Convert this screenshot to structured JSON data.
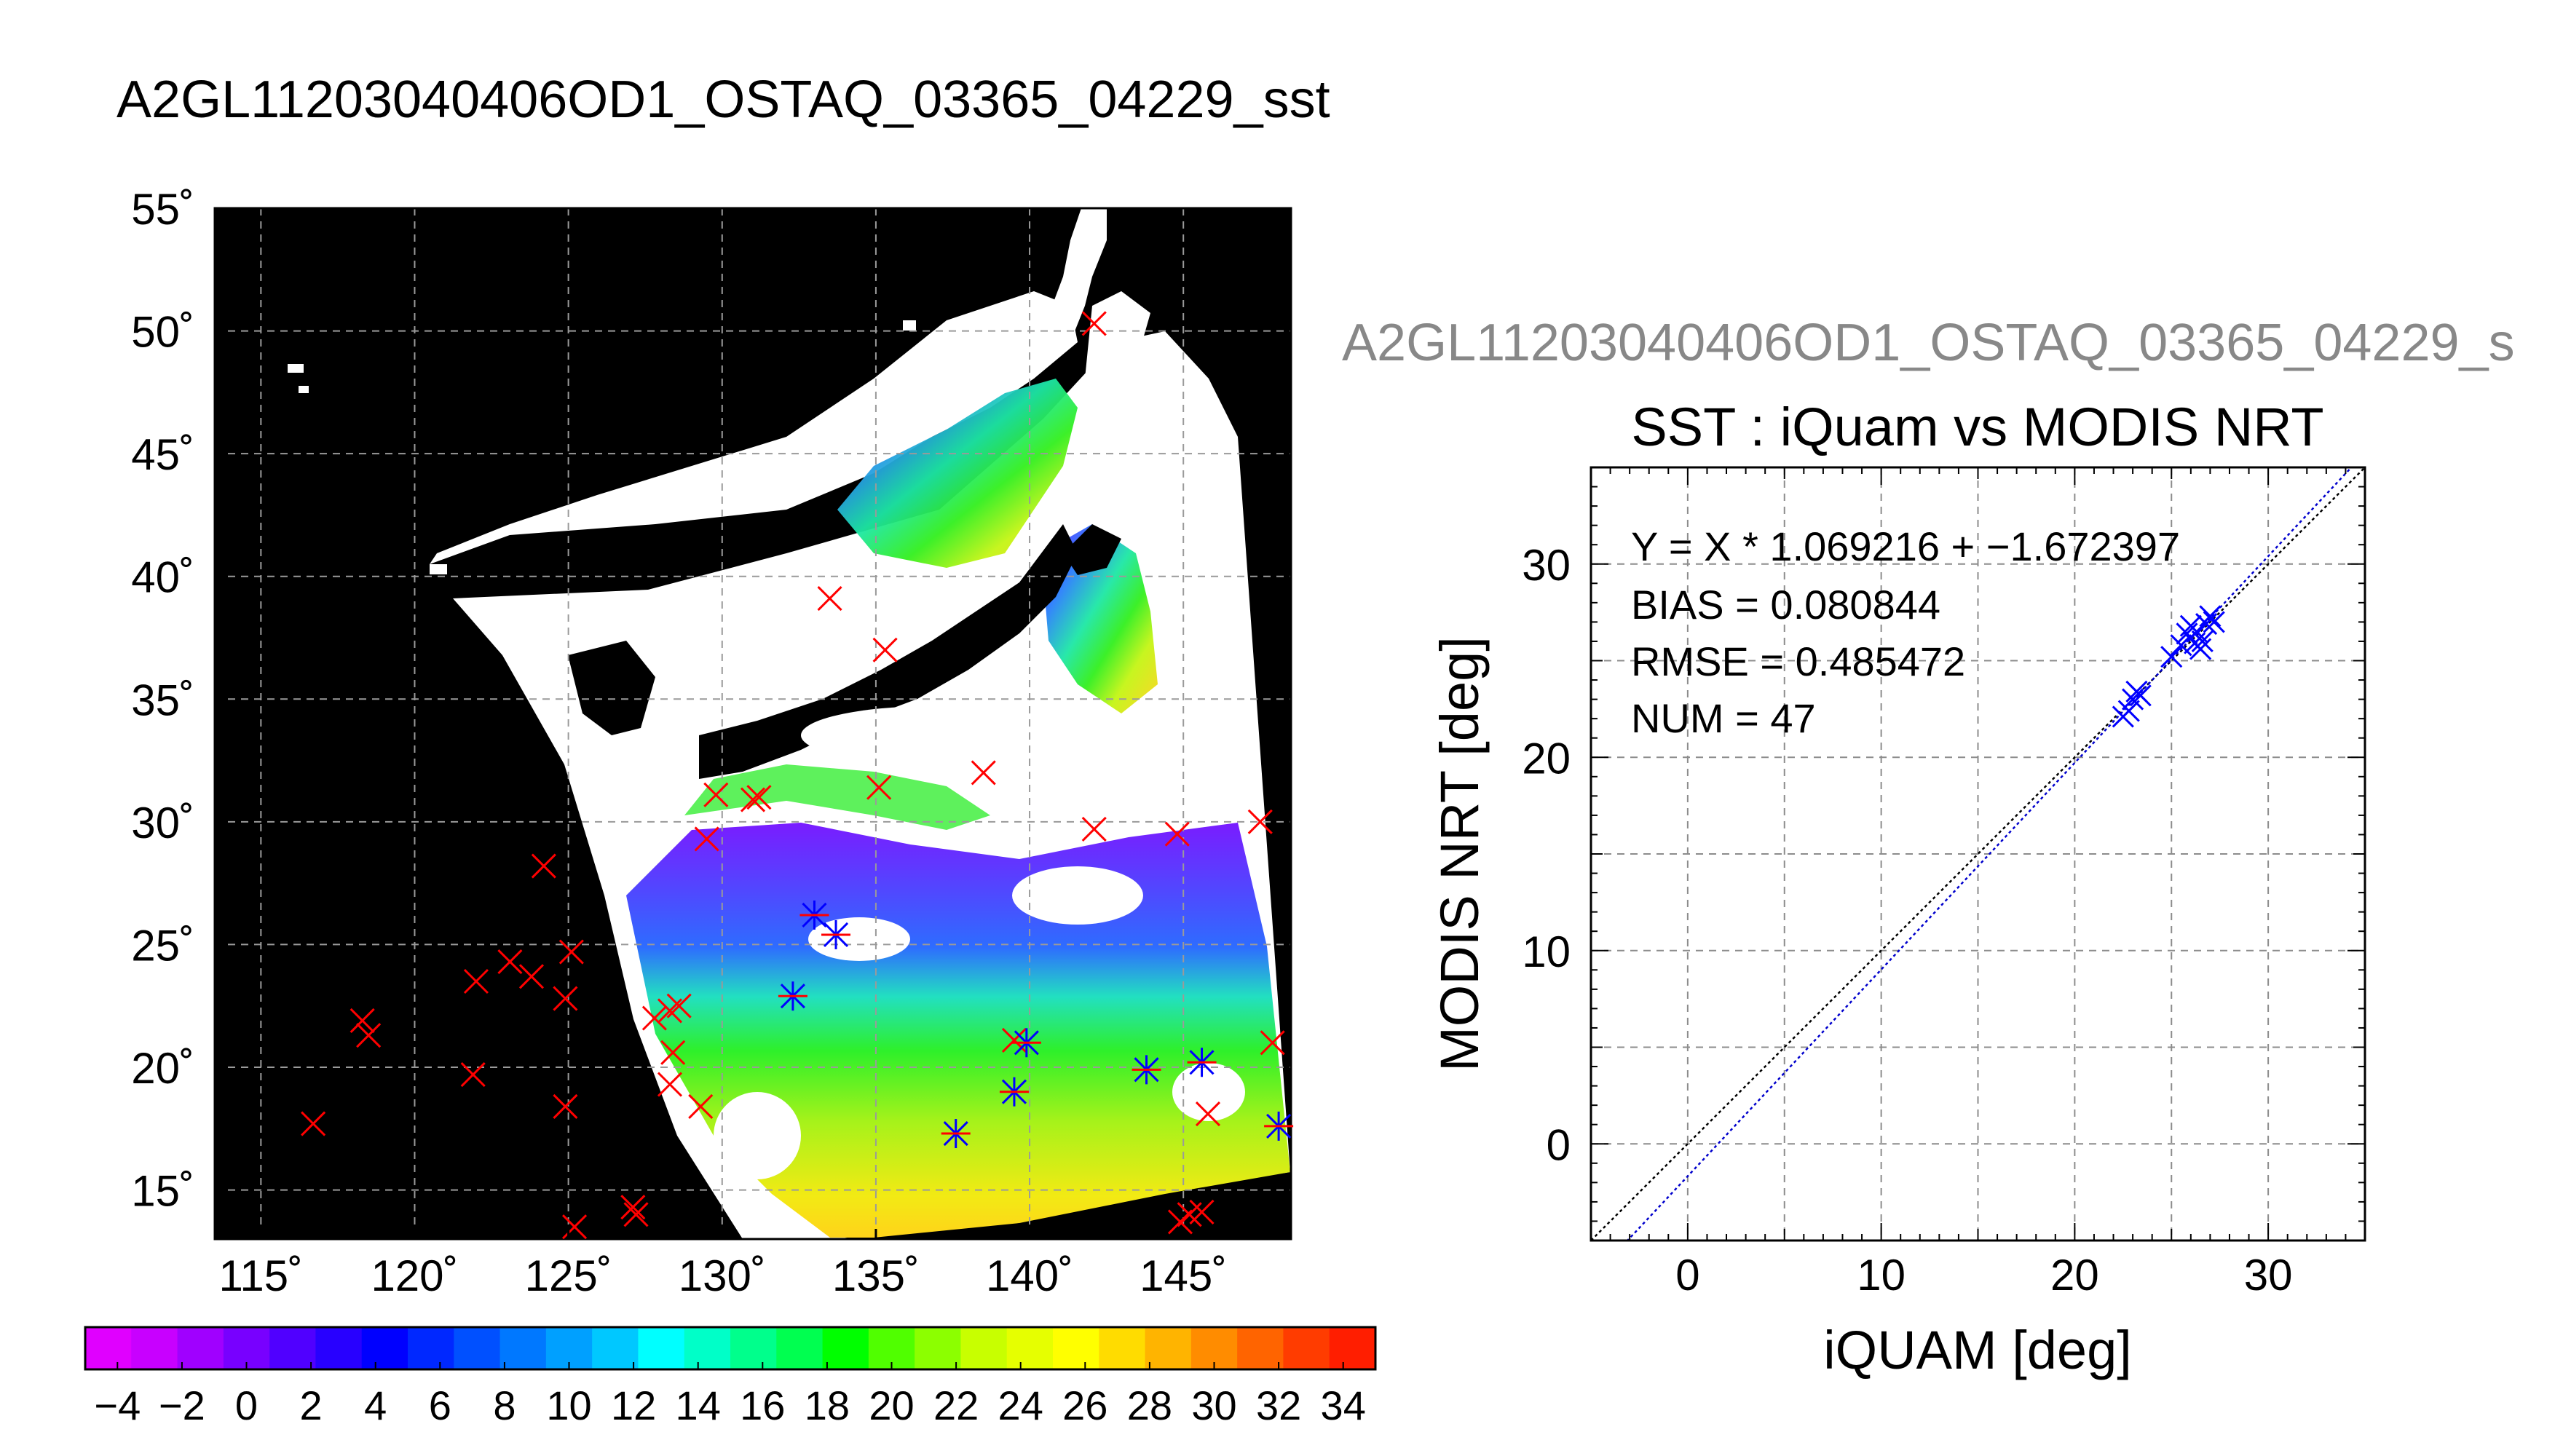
{
  "header": {
    "title": "A2GL11203040406OD1_OSTAQ_03365_04229_sst",
    "secondary_title": "A2GL11203040406OD1_OSTAQ_03365_04229_s"
  },
  "map": {
    "lat_tick_labels": [
      "55˚",
      "50˚",
      "45˚",
      "40˚",
      "35˚",
      "30˚",
      "25˚",
      "20˚",
      "15˚"
    ],
    "lon_tick_labels": [
      "115˚",
      "120˚",
      "125˚",
      "130˚",
      "135˚",
      "140˚",
      "145˚"
    ],
    "lon_range": [
      113.5,
      148.5
    ],
    "lat_range": [
      13,
      55
    ],
    "background_color": "#000000",
    "cloud_color": "#ffffff",
    "marker_color_matchup": "#ff0000",
    "marker_color_valid": "#0000ff"
  },
  "colorbar": {
    "tick_labels": [
      "−4",
      "−2",
      "0",
      "2",
      "4",
      "6",
      "8",
      "10",
      "12",
      "14",
      "16",
      "18",
      "20",
      "22",
      "24",
      "26",
      "28",
      "30",
      "32",
      "34"
    ],
    "range": [
      -5,
      35
    ],
    "colors": [
      "#e000ff",
      "#c800ff",
      "#a000ff",
      "#7800ff",
      "#5000ff",
      "#2800ff",
      "#0000ff",
      "#0028ff",
      "#0050ff",
      "#0078ff",
      "#00a0ff",
      "#00c8ff",
      "#00ffff",
      "#00ffc8",
      "#00ff8c",
      "#00ff50",
      "#00ff00",
      "#50ff00",
      "#8cff00",
      "#c8ff00",
      "#e6ff00",
      "#ffff00",
      "#ffdc00",
      "#ffb400",
      "#ff8c00",
      "#ff6400",
      "#ff3c00",
      "#ff1e00"
    ]
  },
  "chart_data": {
    "type": "scatter",
    "title": "SST : iQuam vs MODIS NRT",
    "xlabel": "iQUAM [deg]",
    "ylabel": "MODIS NRT [deg]",
    "xlim": [
      -5,
      35
    ],
    "ylim": [
      -5,
      35
    ],
    "x_ticks": [
      "0",
      "10",
      "20",
      "30"
    ],
    "y_ticks": [
      "0",
      "10",
      "20",
      "30"
    ],
    "grid": true,
    "annotations": [
      "Y = X * 1.069216 + −1.672397",
      "BIAS = 0.080844",
      "RMSE = 0.485472",
      "NUM = 47"
    ],
    "fit": {
      "slope": 1.069216,
      "intercept": -1.672397,
      "color": "#0000cc"
    },
    "identity_line_color": "#000000",
    "marker_color": "#0000ff",
    "x": [
      22.5,
      22.8,
      23.0,
      23.2,
      23.4,
      25.0,
      25.5,
      25.8,
      26.0,
      26.2,
      26.3,
      26.5,
      26.6,
      26.8,
      27.0,
      27.2
    ],
    "y": [
      22.1,
      22.4,
      23.0,
      23.4,
      23.2,
      25.2,
      25.8,
      26.4,
      26.8,
      25.9,
      26.5,
      25.6,
      26.0,
      26.9,
      27.3,
      27.0
    ]
  }
}
